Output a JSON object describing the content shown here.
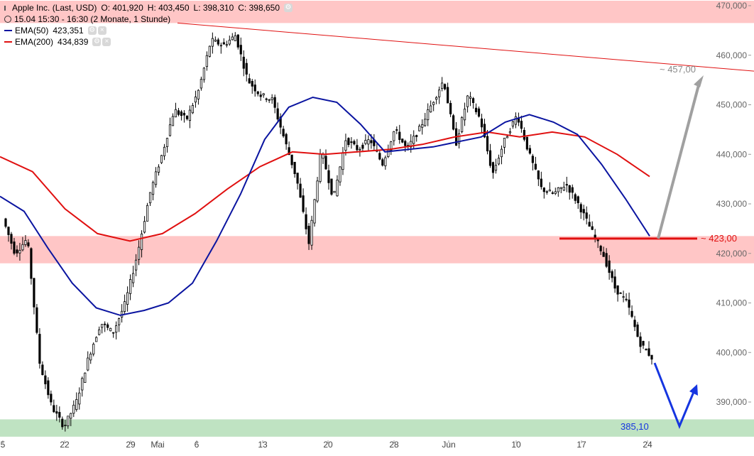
{
  "chart_data": {
    "type": "candlestick",
    "instrument": "Apple Inc. (Last, USD)",
    "ohlc": {
      "O": "401,920",
      "H": "403,450",
      "L": "398,310",
      "C": "398,650"
    },
    "period_text": "15.04 15:30 - 16:30 (2 Monate, 1 Stunde)",
    "indicators": [
      {
        "name": "EMA(50)",
        "value": "423,351",
        "color": "#0a14a0"
      },
      {
        "name": "EMA(200)",
        "value": "434,839",
        "color": "#e01010"
      }
    ],
    "ylim": [
      383,
      471
    ],
    "y_ticks": [
      390,
      400,
      410,
      420,
      430,
      440,
      450,
      460,
      470
    ],
    "y_tick_labels": [
      "390,000",
      "400,000",
      "410,000",
      "420,000",
      "430,000",
      "440,000",
      "450,000",
      "460,000",
      "470,000"
    ],
    "x_tick_labels": [
      "5",
      "22",
      "29",
      "Mai",
      "6",
      "13",
      "20",
      "28",
      "Jun",
      "10",
      "17",
      "24"
    ],
    "zones": [
      {
        "label": "resistance",
        "from": 466.5,
        "to": 471,
        "color": "#ffc6c6"
      },
      {
        "label": "support",
        "from": 418,
        "to": 423.5,
        "color": "#ffc6c6"
      },
      {
        "label": "support",
        "from": 383,
        "to": 386.5,
        "color": "#bfe3c2"
      }
    ],
    "annotations": [
      {
        "text": "~ 457,00",
        "color": "#8a8a8a"
      },
      {
        "text": "~ 423,00",
        "color": "#e01010"
      },
      {
        "text": "385,10",
        "color": "#1535e0"
      }
    ],
    "ema50_series": [
      431.5,
      428.5,
      421,
      414,
      409,
      407.5,
      408.5,
      410,
      414,
      422.5,
      432,
      443,
      449.5,
      451.5,
      450.5,
      446,
      440.5,
      441,
      441.5,
      442.5,
      443.5,
      446.5,
      448,
      446.5,
      444,
      438,
      431,
      423.5
    ],
    "ema200_series": [
      439.5,
      436.5,
      429,
      424,
      422.5,
      424,
      428,
      433,
      437.5,
      440.5,
      440,
      440.5,
      441,
      442,
      443.5,
      444.5,
      443.5,
      444.5,
      443.5,
      440,
      435.5
    ],
    "price_series": [
      427,
      420,
      423,
      398,
      389,
      385,
      390,
      399,
      406,
      404,
      410,
      420,
      432,
      440,
      449,
      447,
      453,
      463,
      462,
      464,
      455,
      452,
      451,
      443,
      435,
      422,
      441,
      431,
      443,
      441,
      443,
      438,
      445,
      441,
      445,
      450,
      455,
      442,
      452,
      447,
      436,
      443,
      448,
      440,
      433,
      432,
      434,
      430,
      425,
      420,
      413,
      410,
      402,
      399
    ]
  }
}
